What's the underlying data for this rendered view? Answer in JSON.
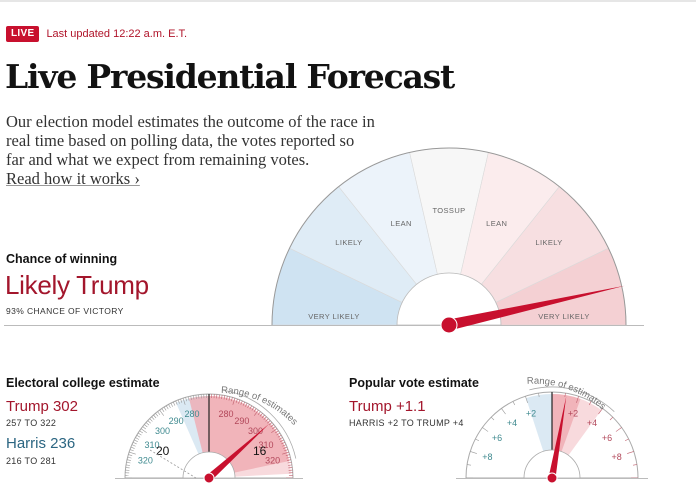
{
  "header": {
    "live_label": "LIVE",
    "updated_text": "Last updated 12:22 a.m. E.T.",
    "title": "Live Presidential Forecast",
    "intro": "Our election model estimates the outcome of the race in real time based on polling data, the votes reported so far and what we expect from remaining votes.",
    "read_more": "Read how it works ›"
  },
  "chance": {
    "label": "Chance of winning",
    "headline": "Likely Trump",
    "subtext": "93% CHANCE OF VICTORY",
    "probability_trump": 0.93,
    "segments": [
      {
        "label": "VERY LIKELY",
        "side": "dem",
        "color": "#cfe3f2"
      },
      {
        "label": "LIKELY",
        "side": "dem",
        "color": "#dfecf6"
      },
      {
        "label": "LEAN",
        "side": "dem",
        "color": "#ecf3fa"
      },
      {
        "label": "TOSSUP",
        "side": "none",
        "color": "#f7f7f7"
      },
      {
        "label": "LEAN",
        "side": "rep",
        "color": "#fbeced"
      },
      {
        "label": "LIKELY",
        "side": "rep",
        "color": "#f7dfe1"
      },
      {
        "label": "VERY LIKELY",
        "side": "rep",
        "color": "#f4d0d3"
      }
    ]
  },
  "electoral": {
    "title": "Electoral college estimate",
    "trump_label": "Trump 302",
    "trump_range": "257 TO 322",
    "harris_label": "Harris 236",
    "harris_range": "216 TO 281",
    "range_caption": "Range of estimates",
    "trump_estimate": 302,
    "trump_low": 257,
    "trump_high": 322,
    "ticks_left": [
      "280",
      "290",
      "300",
      "310",
      "320"
    ],
    "ticks_right": [
      "280",
      "290",
      "300",
      "310",
      "320"
    ],
    "marker_left": "20",
    "marker_right": "16"
  },
  "popular": {
    "title": "Popular vote estimate",
    "headline": "Trump +1.1",
    "range": "HARRIS +2 TO TRUMP +4",
    "range_caption": "Range of estimates",
    "estimate": 1.1,
    "low": -2,
    "high": 4,
    "ticks_left": [
      "+2",
      "+4",
      "+6",
      "+8"
    ],
    "ticks_right": [
      "+2",
      "+4",
      "+6",
      "+8"
    ]
  },
  "colors": {
    "rep": "#c8102e",
    "rep_text": "#a3162c",
    "dem_text": "#2c6682",
    "dem_tick": "#3f8a8f",
    "rep_tick": "#b2475a"
  }
}
